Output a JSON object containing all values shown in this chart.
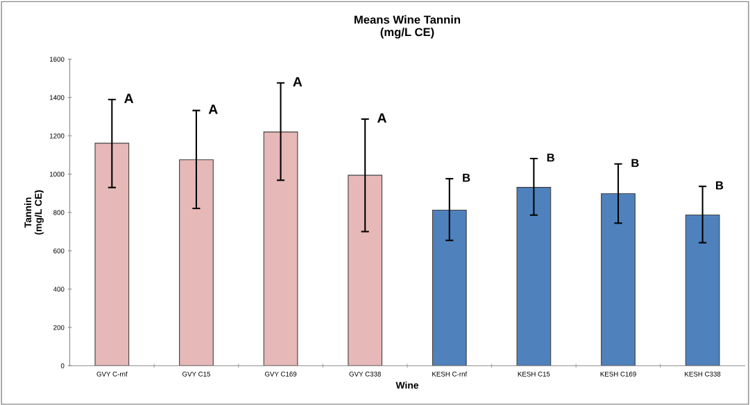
{
  "chart_data": {
    "type": "bar",
    "title": "Means Wine Tannin\n(mg/L CE)",
    "xlabel": "Wine",
    "ylabel": "Tannin\n(mg/L CE)",
    "categories": [
      "GVY C-rnf",
      "GVY C15",
      "GVY C169",
      "GVY C338",
      "KESH C-rnf",
      "KESH C15",
      "KESH C169",
      "KESH C338"
    ],
    "values": [
      1161,
      1075,
      1220,
      994,
      812,
      931,
      898,
      787
    ],
    "colors": [
      "#e6b8b7",
      "#e6b8b7",
      "#e6b8b7",
      "#e6b8b7",
      "#4f81bd",
      "#4f81bd",
      "#4f81bd",
      "#4f81bd"
    ],
    "errors": [
      [
        930,
        1389
      ],
      [
        821,
        1332
      ],
      [
        968,
        1476
      ],
      [
        700,
        1287
      ],
      [
        654,
        976
      ],
      [
        786,
        1081
      ],
      [
        744,
        1053
      ],
      [
        642,
        936
      ]
    ],
    "ylim": [
      0,
      1600
    ],
    "yticks": [
      0,
      200,
      400,
      600,
      800,
      1000,
      1200,
      1400,
      1600
    ],
    "grid": false,
    "annotations": [
      {
        "text": "A",
        "x": "GVY C-rnf",
        "y": 1389
      },
      {
        "text": "A",
        "x": "GVY C15",
        "y": 1332
      },
      {
        "text": "A",
        "x": "GVY C169",
        "y": 1476
      },
      {
        "text": "A",
        "x": "GVY C338",
        "y": 1287
      },
      {
        "text": "B",
        "x": "KESH C-rnf",
        "y": 976
      },
      {
        "text": "B",
        "x": "KESH C15",
        "y": 1081
      },
      {
        "text": "B",
        "x": "KESH C169",
        "y": 1053
      },
      {
        "text": "B",
        "x": "KESH C338",
        "y": 936
      }
    ]
  }
}
